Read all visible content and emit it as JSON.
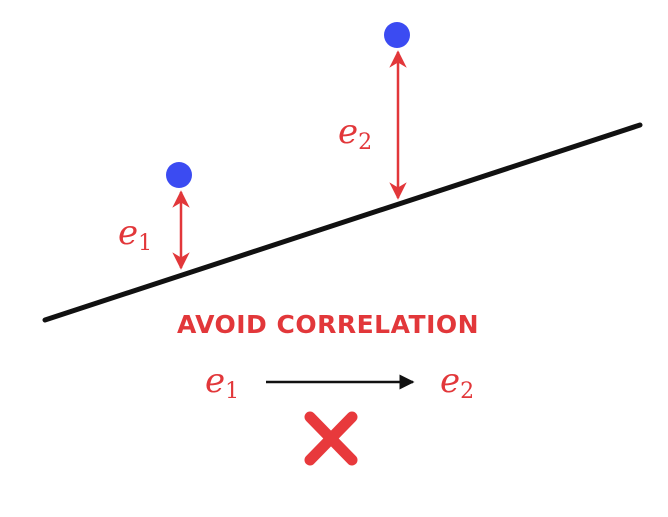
{
  "diagram": {
    "heading": "AVOID CORRELATION",
    "residual_1": {
      "base": "e",
      "sub": "1"
    },
    "residual_2": {
      "base": "e",
      "sub": "2"
    },
    "relation": {
      "from": {
        "base": "e",
        "sub": "1"
      },
      "to": {
        "base": "e",
        "sub": "2"
      }
    },
    "verdict_icon": "cross-mark-icon"
  },
  "colors": {
    "line": "#111111",
    "point": "#3b4bf2",
    "residual": "#e2373a",
    "arrow": "#111111",
    "cross": "#e8393c"
  }
}
